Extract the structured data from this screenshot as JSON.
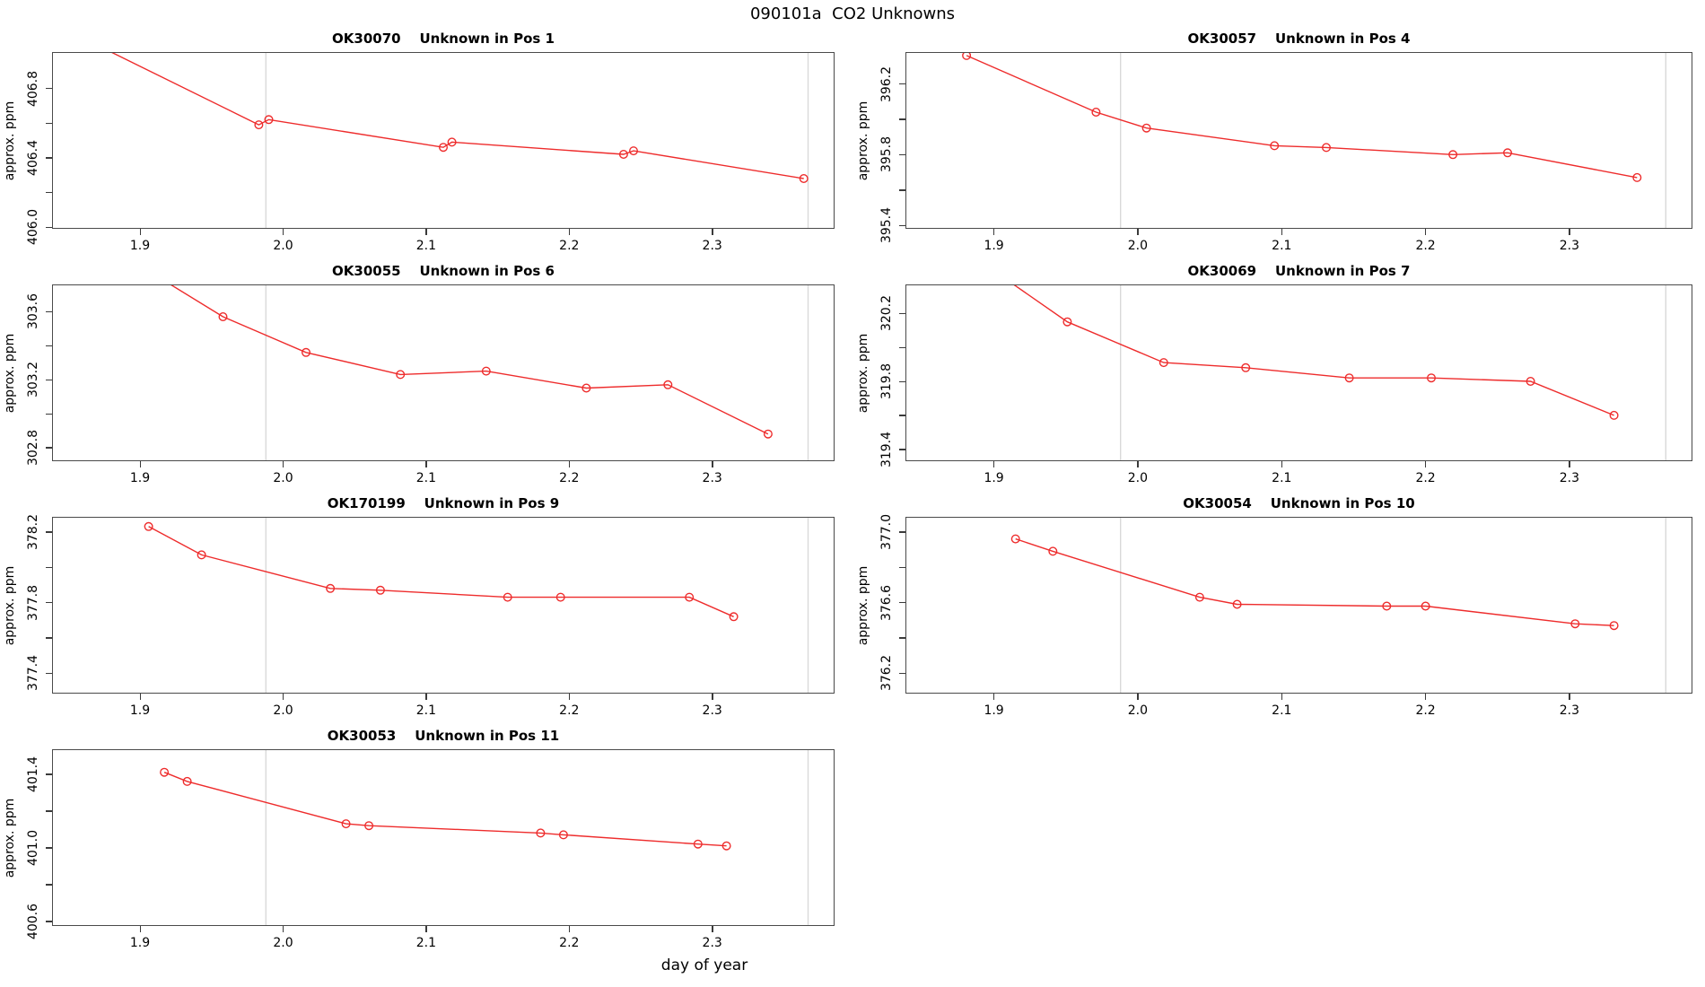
{
  "figure": {
    "title": "090101a  CO2 Unknowns",
    "x_axis_label": "day of year",
    "y_axis_label": "approx. ppm"
  },
  "style": {
    "series_color": "#ee2c2c",
    "guide_color": "#d9d9d9",
    "axis_color": "#3a3a3a"
  },
  "chart_data": {
    "type": "line",
    "grid": "4 rows x 2 cols, 7 panels, open-circle markers, red lines",
    "shared_x": {
      "xlim": [
        1.8385,
        2.3855
      ],
      "xticks": [
        {
          "v": 1.9,
          "label": "1.9"
        },
        {
          "v": 2.0,
          "label": "2.0"
        },
        {
          "v": 2.1,
          "label": "2.1"
        },
        {
          "v": 2.2,
          "label": "2.2"
        },
        {
          "v": 2.3,
          "label": "2.3"
        }
      ],
      "guide_days": [
        1.988,
        2.367
      ]
    },
    "panels": [
      {
        "sample": "OK30070",
        "desc": "Unknown in Pos 1",
        "title": "OK30070    Unknown in Pos 1",
        "row": 0,
        "col": 0,
        "ylabel": "approx. ppm",
        "ylim": [
          405.99,
          407.01
        ],
        "yticks": [
          {
            "v": 406.0,
            "label": "406.0"
          },
          {
            "v": 406.4,
            "label": "406.4"
          },
          {
            "v": 406.8,
            "label": "406.8"
          }
        ],
        "yminor": [
          406.2,
          406.6
        ],
        "points": [
          [
            1.86,
            407.09
          ],
          [
            1.983,
            406.59
          ],
          [
            1.99,
            406.62
          ],
          [
            2.112,
            406.46
          ],
          [
            2.118,
            406.49
          ],
          [
            2.238,
            406.42
          ],
          [
            2.245,
            406.44
          ],
          [
            2.364,
            406.28
          ]
        ]
      },
      {
        "sample": "OK30057",
        "desc": "Unknown in Pos 4",
        "title": "OK30057    Unknown in Pos 4",
        "row": 0,
        "col": 1,
        "ylabel": "approx. ppm",
        "ylim": [
          395.38,
          396.38
        ],
        "yticks": [
          {
            "v": 395.4,
            "label": "395.4"
          },
          {
            "v": 395.8,
            "label": "395.8"
          },
          {
            "v": 396.2,
            "label": "396.2"
          }
        ],
        "yminor": [
          395.6,
          396.0
        ],
        "points": [
          [
            1.881,
            396.36
          ],
          [
            1.971,
            396.04
          ],
          [
            2.006,
            395.95
          ],
          [
            2.095,
            395.85
          ],
          [
            2.131,
            395.84
          ],
          [
            2.219,
            395.8
          ],
          [
            2.257,
            395.81
          ],
          [
            2.347,
            395.67
          ]
        ]
      },
      {
        "sample": "OK30055",
        "desc": "Unknown in Pos 6",
        "title": "OK30055    Unknown in Pos 6",
        "row": 1,
        "col": 0,
        "ylabel": "approx. ppm",
        "ylim": [
          302.72,
          303.76
        ],
        "yticks": [
          {
            "v": 302.8,
            "label": "302.8"
          },
          {
            "v": 303.2,
            "label": "303.2"
          },
          {
            "v": 303.6,
            "label": "303.6"
          }
        ],
        "yminor": [
          303.0,
          303.4
        ],
        "points": [
          [
            1.9,
            303.87
          ],
          [
            1.958,
            303.57
          ],
          [
            2.016,
            303.36
          ],
          [
            2.082,
            303.23
          ],
          [
            2.142,
            303.25
          ],
          [
            2.212,
            303.15
          ],
          [
            2.269,
            303.17
          ],
          [
            2.339,
            302.88
          ]
        ]
      },
      {
        "sample": "OK30069",
        "desc": "Unknown in Pos 7",
        "title": "OK30069    Unknown in Pos 7",
        "row": 1,
        "col": 1,
        "ylabel": "approx. ppm",
        "ylim": [
          319.33,
          320.37
        ],
        "yticks": [
          {
            "v": 319.4,
            "label": "319.4"
          },
          {
            "v": 319.8,
            "label": "319.8"
          },
          {
            "v": 320.2,
            "label": "320.2"
          }
        ],
        "yminor": [
          319.6,
          320.0
        ],
        "points": [
          [
            1.9,
            320.45
          ],
          [
            1.951,
            320.15
          ],
          [
            2.018,
            319.91
          ],
          [
            2.075,
            319.88
          ],
          [
            2.147,
            319.82
          ],
          [
            2.204,
            319.82
          ],
          [
            2.273,
            319.8
          ],
          [
            2.331,
            319.6
          ]
        ]
      },
      {
        "sample": "OK170199",
        "desc": "Unknown in Pos 9",
        "title": "OK170199    Unknown in Pos 9",
        "row": 2,
        "col": 0,
        "ylabel": "approx. ppm",
        "ylim": [
          377.285,
          378.285
        ],
        "yticks": [
          {
            "v": 377.4,
            "label": "377.4"
          },
          {
            "v": 377.8,
            "label": "377.8"
          },
          {
            "v": 378.2,
            "label": "378.2"
          }
        ],
        "yminor": [
          377.6,
          378.0
        ],
        "points": [
          [
            1.906,
            378.23
          ],
          [
            1.943,
            378.07
          ],
          [
            2.033,
            377.88
          ],
          [
            2.068,
            377.87
          ],
          [
            2.157,
            377.83
          ],
          [
            2.194,
            377.83
          ],
          [
            2.284,
            377.83
          ],
          [
            2.315,
            377.72
          ]
        ]
      },
      {
        "sample": "OK30054",
        "desc": "Unknown in Pos 10",
        "title": "OK30054    Unknown in Pos 10",
        "row": 2,
        "col": 1,
        "ylabel": "approx. ppm",
        "ylim": [
          376.085,
          377.085
        ],
        "yticks": [
          {
            "v": 376.2,
            "label": "376.2"
          },
          {
            "v": 376.6,
            "label": "376.6"
          },
          {
            "v": 377.0,
            "label": "377.0"
          }
        ],
        "yminor": [
          376.4,
          376.8
        ],
        "points": [
          [
            1.915,
            376.96
          ],
          [
            1.941,
            376.89
          ],
          [
            2.043,
            376.63
          ],
          [
            2.069,
            376.59
          ],
          [
            2.173,
            376.58
          ],
          [
            2.2,
            376.58
          ],
          [
            2.304,
            376.48
          ],
          [
            2.331,
            376.47
          ]
        ]
      },
      {
        "sample": "OK30053",
        "desc": "Unknown in Pos 11",
        "title": "OK30053    Unknown in Pos 11",
        "row": 3,
        "col": 0,
        "ylabel": "approx. ppm",
        "ylim": [
          400.575,
          401.535
        ],
        "yticks": [
          {
            "v": 400.6,
            "label": "400.6"
          },
          {
            "v": 401.0,
            "label": "401.0"
          },
          {
            "v": 401.4,
            "label": "401.4"
          }
        ],
        "yminor": [
          400.8,
          401.2
        ],
        "points": [
          [
            1.917,
            401.41
          ],
          [
            1.933,
            401.36
          ],
          [
            2.044,
            401.13
          ],
          [
            2.06,
            401.12
          ],
          [
            2.18,
            401.08
          ],
          [
            2.196,
            401.07
          ],
          [
            2.29,
            401.02
          ],
          [
            2.31,
            401.01
          ]
        ]
      }
    ]
  }
}
